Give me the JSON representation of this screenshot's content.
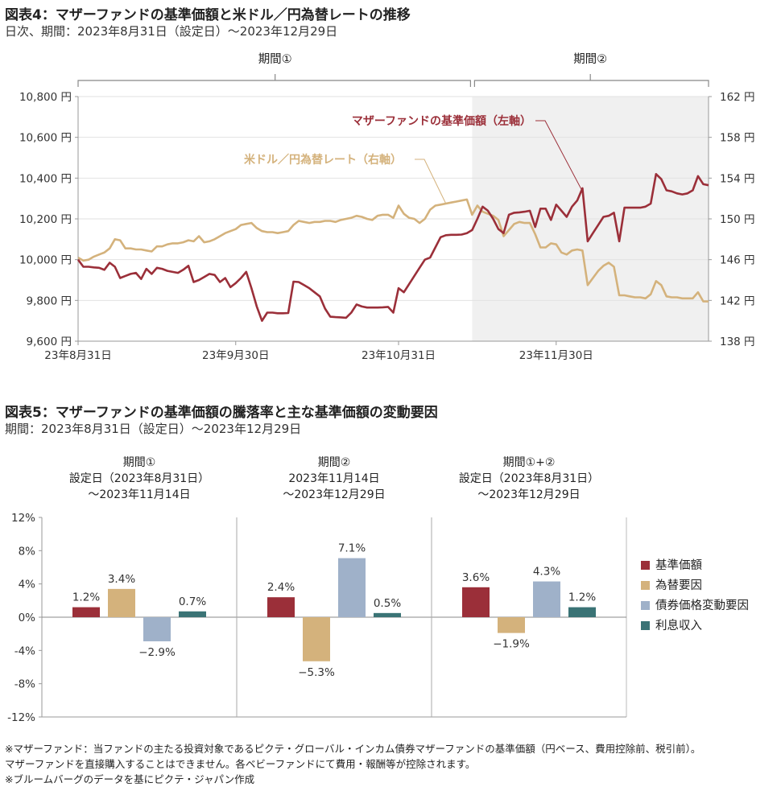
{
  "chart_data": [
    {
      "type": "line",
      "title": "図表4：マザーファンドの基準価額と米ドル／円為替レートの推移",
      "subtitle": "日次、期間：2023年8月31日（設定日）～2023年12月29日",
      "period_labels": [
        "期間①",
        "期間②"
      ],
      "x_tick_labels": [
        "23年8月31日",
        "23年9月30日",
        "23年10月31日",
        "23年11月30日"
      ],
      "x_ticks_day": [
        0,
        30,
        61,
        91
      ],
      "x_range_day": [
        0,
        120
      ],
      "shaded_from_day": 75,
      "left_axis": {
        "ylim": [
          9600,
          10800
        ],
        "ticks": [
          "10,800 円",
          "10,600 円",
          "10,400 円",
          "10,200 円",
          "10,000 円",
          "9,800 円",
          "9,600 円"
        ],
        "tick_values": [
          10800,
          10600,
          10400,
          10200,
          10000,
          9800,
          9600
        ]
      },
      "right_axis": {
        "ylim": [
          138,
          162
        ],
        "ticks": [
          "162 円",
          "158 円",
          "154 円",
          "150 円",
          "146 円",
          "142 円",
          "138 円"
        ],
        "tick_values": [
          162,
          158,
          154,
          150,
          146,
          142,
          138
        ]
      },
      "series": [
        {
          "name": "マザーファンドの基準価額（左軸）",
          "axis": "left",
          "color": "#9b2f39",
          "x": [
            0,
            1,
            2,
            3,
            4,
            5,
            6,
            7,
            8,
            9,
            10,
            11,
            12,
            13,
            14,
            15,
            16,
            17,
            18,
            19,
            20,
            21,
            22,
            23,
            24,
            25,
            26,
            27,
            28,
            29,
            30,
            31,
            32,
            33,
            34,
            35,
            36,
            37,
            38,
            39,
            40,
            41,
            42,
            43,
            44,
            45,
            46,
            47,
            48,
            49,
            50,
            51,
            52,
            53,
            54,
            55,
            56,
            57,
            58,
            59,
            60,
            61,
            62,
            63,
            64,
            65,
            66,
            67,
            68,
            69,
            70,
            71,
            72,
            73,
            74,
            75,
            76,
            77,
            78,
            79,
            80,
            81,
            82,
            83,
            84,
            85,
            86,
            87,
            88,
            89,
            90,
            91,
            92,
            93,
            94,
            95,
            96,
            97,
            98,
            99,
            100,
            101,
            102,
            103,
            104,
            105,
            106,
            107,
            108,
            109,
            110,
            111,
            112,
            113,
            114,
            115,
            116,
            117,
            118,
            119,
            120
          ],
          "values": [
            10000,
            9965,
            9965,
            9962,
            9960,
            9950,
            9985,
            9965,
            9910,
            9920,
            9930,
            9935,
            9905,
            9955,
            9930,
            9960,
            9955,
            9945,
            9940,
            9935,
            9950,
            9970,
            9890,
            9900,
            9915,
            9930,
            9925,
            9890,
            9910,
            9865,
            9885,
            9910,
            9940,
            9860,
            9770,
            9700,
            9740,
            9740,
            9737,
            9737,
            9738,
            9892,
            9890,
            9875,
            9860,
            9840,
            9820,
            9760,
            9720,
            9718,
            9717,
            9715,
            9740,
            9780,
            9770,
            9765,
            9765,
            9765,
            9766,
            9768,
            9740,
            9860,
            9840,
            9880,
            9920,
            9960,
            10000,
            10010,
            10060,
            10110,
            10120,
            10122,
            10122,
            10123,
            10130,
            10145,
            10200,
            10260,
            10240,
            10200,
            10150,
            10130,
            10220,
            10230,
            10232,
            10235,
            10240,
            10160,
            10250,
            10250,
            10195,
            10270,
            10240,
            10210,
            10260,
            10290,
            10350,
            10090,
            10130,
            10170,
            10210,
            10215,
            10230,
            10090,
            10255,
            10255,
            10255,
            10255,
            10260,
            10275,
            10420,
            10395,
            10340,
            10335,
            10325,
            10320,
            10325,
            10340,
            10410,
            10370,
            10365
          ]
        },
        {
          "name": "米ドル／円為替レート（右軸）",
          "axis": "right",
          "color": "#d4b27c",
          "x": [
            0,
            1,
            2,
            3,
            4,
            5,
            6,
            7,
            8,
            9,
            10,
            11,
            12,
            13,
            14,
            15,
            16,
            17,
            18,
            19,
            20,
            21,
            22,
            23,
            24,
            25,
            26,
            27,
            28,
            29,
            30,
            31,
            32,
            33,
            34,
            35,
            36,
            37,
            38,
            39,
            40,
            41,
            42,
            43,
            44,
            45,
            46,
            47,
            48,
            49,
            50,
            51,
            52,
            53,
            54,
            55,
            56,
            57,
            58,
            59,
            60,
            61,
            62,
            63,
            64,
            65,
            66,
            67,
            68,
            69,
            70,
            71,
            72,
            73,
            74,
            75,
            76,
            77,
            78,
            79,
            80,
            81,
            82,
            83,
            84,
            85,
            86,
            87,
            88,
            89,
            90,
            91,
            92,
            93,
            94,
            95,
            96,
            97,
            98,
            99,
            100,
            101,
            102,
            103,
            104,
            105,
            106,
            107,
            108,
            109,
            110,
            111,
            112,
            113,
            114,
            115,
            116,
            117,
            118,
            119,
            120
          ],
          "values": [
            146.2,
            145.9,
            146.0,
            146.3,
            146.5,
            146.7,
            147.1,
            148.0,
            147.9,
            147.1,
            147.1,
            147.0,
            147.0,
            146.9,
            146.8,
            147.3,
            147.3,
            147.5,
            147.6,
            147.6,
            147.7,
            147.9,
            147.8,
            148.3,
            147.7,
            147.8,
            148.0,
            148.3,
            148.6,
            148.8,
            149.0,
            149.4,
            149.5,
            149.6,
            149.1,
            148.8,
            148.7,
            148.7,
            148.6,
            148.7,
            148.8,
            149.4,
            149.8,
            149.7,
            149.6,
            149.7,
            149.7,
            149.8,
            149.8,
            149.7,
            149.9,
            150.0,
            150.1,
            150.3,
            150.2,
            150.0,
            149.9,
            150.3,
            150.4,
            150.4,
            150.1,
            151.3,
            150.5,
            150.1,
            150.0,
            149.6,
            150.0,
            150.9,
            151.3,
            151.4,
            151.5,
            151.6,
            151.7,
            151.8,
            151.9,
            150.4,
            151.3,
            150.7,
            150.5,
            150.3,
            149.9,
            148.3,
            148.9,
            149.5,
            149.7,
            149.6,
            149.6,
            148.5,
            147.2,
            147.2,
            147.6,
            147.5,
            146.7,
            146.5,
            146.9,
            147.0,
            146.9,
            143.5,
            144.2,
            144.9,
            145.4,
            145.7,
            145.3,
            142.5,
            142.5,
            142.4,
            142.3,
            142.3,
            142.2,
            142.6,
            143.9,
            143.5,
            142.4,
            142.3,
            142.3,
            142.2,
            142.2,
            142.2,
            142.8,
            141.9,
            141.9
          ]
        }
      ]
    },
    {
      "type": "bar",
      "title": "図表5：マザーファンドの基準価額の騰落率と主な基準価額の変動要因",
      "subtitle": "期間：2023年8月31日（設定日）～2023年12月29日",
      "ylim": [
        -12,
        12
      ],
      "y_tick_labels": [
        "12%",
        "8%",
        "4%",
        "0%",
        "-4%",
        "-8%",
        "-12%"
      ],
      "y_tick_values": [
        12,
        8,
        4,
        0,
        -4,
        -8,
        -12
      ],
      "groups": [
        {
          "header": [
            "期間①",
            "設定日（2023年8月31日）",
            "～2023年11月14日"
          ],
          "values": [
            1.2,
            3.4,
            -2.9,
            0.7
          ],
          "labels": [
            "1.2%",
            "3.4%",
            "−2.9%",
            "0.7%"
          ]
        },
        {
          "header": [
            "期間②",
            "2023年11月14日",
            "～2023年12月29日"
          ],
          "values": [
            2.4,
            -5.3,
            7.1,
            0.5
          ],
          "labels": [
            "2.4%",
            "−5.3%",
            "7.1%",
            "0.5%"
          ]
        },
        {
          "header": [
            "期間①+②",
            "設定日（2023年8月31日）",
            "～2023年12月29日"
          ],
          "values": [
            3.6,
            -1.9,
            4.3,
            1.2
          ],
          "labels": [
            "3.6%",
            "−1.9%",
            "4.3%",
            "1.2%"
          ]
        }
      ],
      "series": [
        {
          "name": "基準価額",
          "color": "#9b2f39"
        },
        {
          "name": "為替要因",
          "color": "#d4b27c"
        },
        {
          "name": "債券価格変動要因",
          "color": "#9fb1c9"
        },
        {
          "name": "利息収入",
          "color": "#3a7375"
        }
      ]
    }
  ],
  "notes": [
    "※マザーファンド：当ファンドの主たる投資対象であるピクテ・グローバル・インカム債券マザーファンドの基準価額（円ベース、費用控除前、税引前）。",
    "マザーファンドを直接購入することはできません。各ベビーファンドにて費用・報酬等が控除されます。",
    "※ブルームバーグのデータを基にピクテ・ジャパン作成"
  ]
}
